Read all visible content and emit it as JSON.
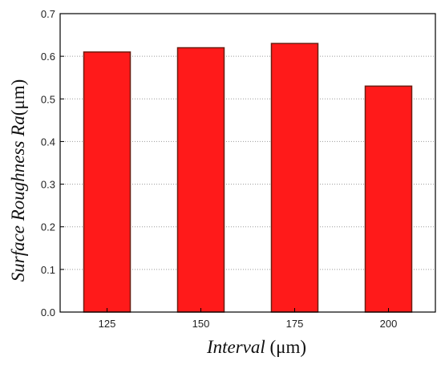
{
  "chart_data": {
    "type": "bar",
    "categories": [
      "125",
      "150",
      "175",
      "200"
    ],
    "values": [
      0.61,
      0.62,
      0.63,
      0.53
    ],
    "xlabel": "Interval",
    "xlabel_unit": " (μm)",
    "ylabel": "Surface Roughness Ra",
    "ylabel_unit": "(μm)",
    "ylim": [
      0,
      0.7
    ],
    "yticks": [
      "0.0",
      "0.1",
      "0.2",
      "0.3",
      "0.4",
      "0.5",
      "0.6",
      "0.7"
    ],
    "grid": true,
    "bar_color": "#ff1a1a",
    "bar_edge_color": "#6b1e12"
  }
}
